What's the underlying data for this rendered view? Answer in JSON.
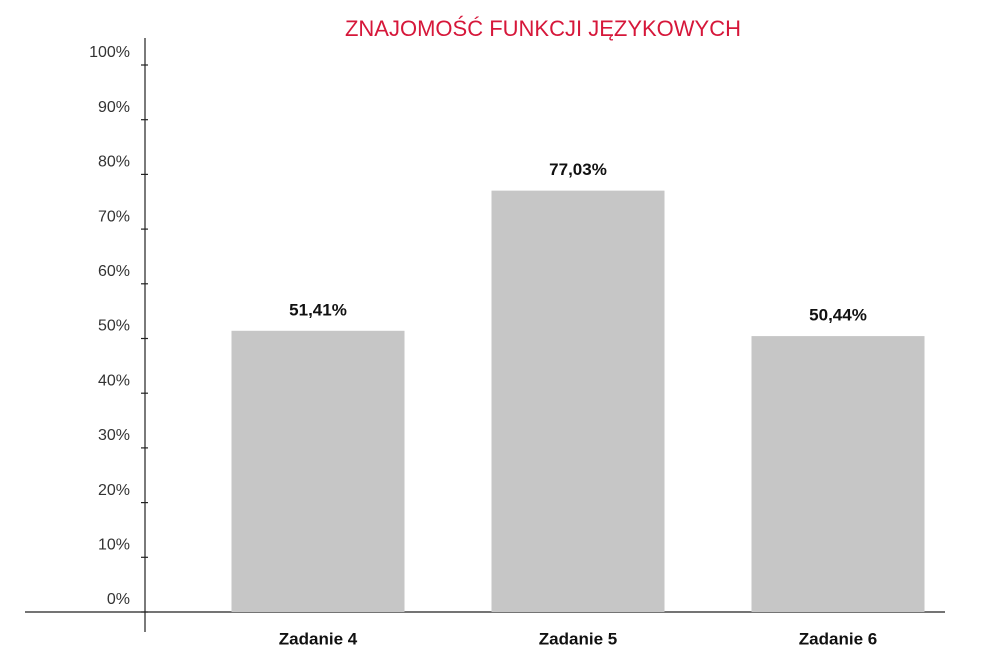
{
  "chart_data": {
    "type": "bar",
    "title": "ZNAJOMOŚĆ FUNKCJI JĘZYKOWYCH",
    "categories": [
      "Zadanie 4",
      "Zadanie 5",
      "Zadanie 6"
    ],
    "values": [
      51.41,
      77.03,
      50.44
    ],
    "value_labels": [
      "51,41%",
      "77,03%",
      "50,44%"
    ],
    "color": "#c6c6c6",
    "ylim": [
      0,
      100
    ],
    "yticks": [
      {
        "value": 0,
        "label": "0%"
      },
      {
        "value": 10,
        "label": "10%"
      },
      {
        "value": 20,
        "label": "20%"
      },
      {
        "value": 30,
        "label": "30%"
      },
      {
        "value": 40,
        "label": "40%"
      },
      {
        "value": 50,
        "label": "50%"
      },
      {
        "value": 60,
        "label": "60%"
      },
      {
        "value": 70,
        "label": "70%"
      },
      {
        "value": 80,
        "label": "80%"
      },
      {
        "value": 90,
        "label": "90%"
      },
      {
        "value": 100,
        "label": "100%"
      }
    ],
    "grid": false
  }
}
